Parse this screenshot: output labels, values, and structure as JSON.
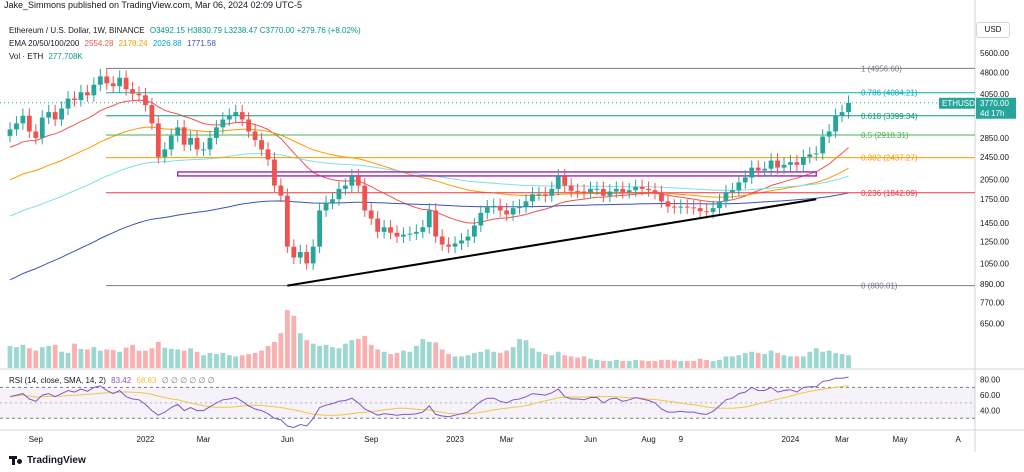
{
  "header": {
    "publisher": "Jake_Simmons published on TradingView.com, Mar 06, 2024 02:09 UTC-5"
  },
  "legend": {
    "symbol": "Ethereum / U.S. Dollar, 1W, BINANCE",
    "ohlc": "O3492.15  H3830.79  L3238.47  C3770.00  +279.76 (+8.02%)",
    "ema_label": "EMA 20/50/100/200",
    "ema_values": [
      "2554.28",
      "2178.24",
      "2026.88",
      "1771.58"
    ],
    "vol_label": "Vol · ETH",
    "vol_value": "277.708K"
  },
  "rsi_legend": {
    "label": "RSI (14, close, SMA, 14, 2)",
    "value1": "83.42",
    "value2": "68.83",
    "placeholders": "∅ ∅ ∅ ∅ ∅ ∅"
  },
  "currency": "USD",
  "last_price": {
    "symbol": "ETHUSD",
    "price": "3770.00",
    "countdown": "4d 17h"
  },
  "brand": "TradingView",
  "colors": {
    "up": "#26a69a",
    "down": "#ef5350",
    "ema20": "#ef5350",
    "ema50": "#ff9800",
    "ema100": "#80deea",
    "ema200": "#3f51b5",
    "rsi": "#7e57c2",
    "rsi_sma": "#f3c543"
  },
  "chart_data": {
    "type": "candlestick",
    "title": "Ethereum / U.S. Dollar, 1W, BINANCE",
    "scale": "log",
    "ylim": [
      580,
      7400
    ],
    "y_ticks": [
      5600,
      4800,
      4050,
      3400,
      2850,
      2450,
      2050,
      1750,
      1450,
      1250,
      1050,
      890,
      770,
      650
    ],
    "y_tick_labels": [
      "5600.00",
      "4800.00",
      "4050.00",
      "3400.00",
      "2850.00",
      "2450.00",
      "2050.00",
      "1750.00",
      "1450.00",
      "1250.00",
      "1050.00",
      "890.00",
      "770.00",
      "650.00"
    ],
    "x_tick_labels": [
      "Sep",
      "2022",
      "Mar",
      "Jun",
      "Sep",
      "2023",
      "Mar",
      "Jun",
      "Aug",
      "9",
      "2024",
      "Mar",
      "May",
      "A"
    ],
    "x_tick_weeks": [
      4,
      21,
      30,
      43,
      56,
      69,
      77,
      90,
      99,
      104,
      121,
      129,
      138,
      147
    ],
    "weekly_close": [
      3050,
      3200,
      3400,
      3000,
      2850,
      3350,
      3500,
      3300,
      3600,
      3900,
      3850,
      4100,
      4000,
      4350,
      4650,
      4400,
      4300,
      4600,
      4200,
      4050,
      4000,
      3700,
      3200,
      2450,
      2600,
      2900,
      3100,
      2700,
      2850,
      2600,
      2600,
      2850,
      3100,
      3300,
      3400,
      3500,
      3300,
      3000,
      2800,
      2600,
      2400,
      1950,
      1800,
      1200,
      1100,
      1150,
      1050,
      1200,
      1600,
      1700,
      1750,
      1900,
      1950,
      2100,
      1950,
      1600,
      1500,
      1350,
      1400,
      1340,
      1300,
      1320,
      1330,
      1350,
      1400,
      1600,
      1300,
      1220,
      1200,
      1230,
      1260,
      1300,
      1420,
      1570,
      1640,
      1660,
      1600,
      1550,
      1630,
      1650,
      1720,
      1820,
      1820,
      1800,
      1900,
      2100,
      1950,
      1870,
      1860,
      1850,
      1900,
      1900,
      1800,
      1860,
      1900,
      1850,
      1880,
      1930,
      1900,
      1880,
      1840,
      1720,
      1650,
      1640,
      1650,
      1640,
      1630,
      1590,
      1580,
      1630,
      1720,
      1850,
      1880,
      2000,
      2080,
      2250,
      2200,
      2230,
      2380,
      2250,
      2300,
      2350,
      2300,
      2450,
      2500,
      2520,
      2880,
      3000,
      3400,
      3500,
      3770
    ],
    "weekly_volume": [
      0.38,
      0.36,
      0.4,
      0.34,
      0.3,
      0.36,
      0.38,
      0.4,
      0.28,
      0.26,
      0.42,
      0.33,
      0.32,
      0.36,
      0.3,
      0.32,
      0.31,
      0.28,
      0.35,
      0.4,
      0.3,
      0.3,
      0.34,
      0.45,
      0.35,
      0.33,
      0.32,
      0.3,
      0.34,
      0.28,
      0.22,
      0.26,
      0.24,
      0.26,
      0.22,
      0.2,
      0.22,
      0.24,
      0.26,
      0.3,
      0.38,
      0.45,
      0.6,
      1.0,
      0.9,
      0.6,
      0.48,
      0.42,
      0.38,
      0.4,
      0.36,
      0.34,
      0.42,
      0.48,
      0.5,
      0.55,
      0.4,
      0.32,
      0.28,
      0.24,
      0.26,
      0.3,
      0.28,
      0.38,
      0.5,
      0.45,
      0.44,
      0.32,
      0.24,
      0.2,
      0.2,
      0.22,
      0.26,
      0.28,
      0.32,
      0.28,
      0.26,
      0.3,
      0.36,
      0.5,
      0.48,
      0.34,
      0.28,
      0.24,
      0.22,
      0.28,
      0.22,
      0.2,
      0.18,
      0.2,
      0.16,
      0.14,
      0.12,
      0.12,
      0.14,
      0.12,
      0.12,
      0.14,
      0.13,
      0.12,
      0.12,
      0.14,
      0.14,
      0.13,
      0.12,
      0.12,
      0.12,
      0.16,
      0.14,
      0.12,
      0.14,
      0.2,
      0.2,
      0.22,
      0.26,
      0.28,
      0.26,
      0.24,
      0.3,
      0.26,
      0.22,
      0.2,
      0.2,
      0.2,
      0.28,
      0.34,
      0.28,
      0.3,
      0.26,
      0.24,
      0.22
    ],
    "rsi": [
      58,
      60,
      62,
      55,
      52,
      60,
      62,
      58,
      62,
      66,
      64,
      68,
      65,
      70,
      72,
      66,
      62,
      66,
      58,
      55,
      54,
      48,
      40,
      34,
      38,
      44,
      48,
      40,
      44,
      40,
      40,
      45,
      50,
      54,
      55,
      57,
      52,
      46,
      42,
      40,
      36,
      30,
      28,
      20,
      18,
      22,
      20,
      30,
      44,
      47,
      49,
      52,
      53,
      56,
      50,
      42,
      38,
      34,
      36,
      35,
      34,
      35,
      35,
      36,
      38,
      46,
      35,
      33,
      32,
      34,
      36,
      38,
      45,
      52,
      56,
      56,
      52,
      50,
      54,
      55,
      58,
      62,
      61,
      60,
      63,
      68,
      58,
      55,
      55,
      54,
      57,
      57,
      50,
      55,
      56,
      52,
      54,
      57,
      55,
      53,
      50,
      42,
      38,
      38,
      39,
      38,
      38,
      36,
      35,
      39,
      46,
      54,
      56,
      62,
      64,
      70,
      66,
      66,
      70,
      64,
      66,
      67,
      64,
      70,
      71,
      71,
      78,
      79,
      82,
      82,
      83.42
    ],
    "rsi_ylim": [
      20,
      90
    ],
    "rsi_ticks": [
      80,
      60,
      40
    ],
    "rsi_tick_labels": [
      "80.00",
      "60.00",
      "40.00"
    ],
    "rsi_band": [
      30,
      70
    ],
    "fib_levels": [
      {
        "label": "1 (4956.60)",
        "value": 4956.6,
        "color": "#787b86"
      },
      {
        "label": "0.786 (4084.21)",
        "value": 4084.21,
        "color": "#00acc1"
      },
      {
        "label": "0.618 (3399.34)",
        "value": 3399.34,
        "color": "#089981"
      },
      {
        "label": "0.5 (2918.31)",
        "value": 2918.31,
        "color": "#4caf50"
      },
      {
        "label": "0.382 (2437.27)",
        "value": 2437.27,
        "color": "#ff9800"
      },
      {
        "label": "0.236 (1842.09)",
        "value": 1842.09,
        "color": "#f23645"
      },
      {
        "label": "0 (880.01)",
        "value": 880.01,
        "color": "#787b86"
      }
    ],
    "trendline": {
      "from": {
        "week": 43,
        "value": 880
      },
      "to": {
        "week": 125,
        "value": 1750
      }
    },
    "resistance_zone": {
      "from_week": 26,
      "to_week": 125,
      "value": 2140
    }
  }
}
